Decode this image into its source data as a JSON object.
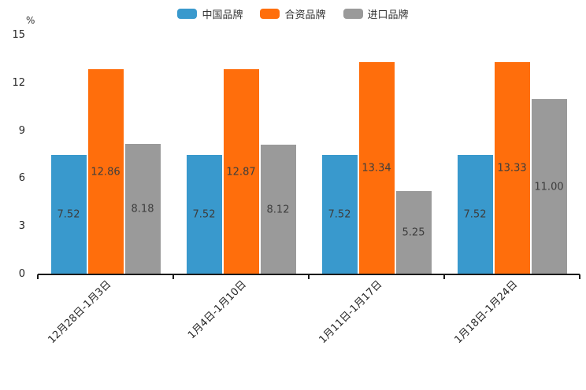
{
  "chart_data": {
    "type": "bar",
    "title": "",
    "ylabel": "%",
    "xlabel": "",
    "categories": [
      "12月28日-1月3日",
      "1月4日-1月10日",
      "1月11日-1月17日",
      "1月18日-1月24日"
    ],
    "series": [
      {
        "name": "中国品牌",
        "color": "#3999cd",
        "values": [
          7.52,
          7.52,
          7.52,
          7.52
        ]
      },
      {
        "name": "合资品牌",
        "color": "#ff6e0c",
        "values": [
          12.86,
          12.87,
          13.34,
          13.33
        ]
      },
      {
        "name": "进口品牌",
        "color": "#9a9a9a",
        "values": [
          8.18,
          8.12,
          5.25,
          11.0
        ]
      }
    ],
    "value_label_decimals": 2,
    "ylim": [
      0,
      15
    ],
    "yticks": [
      0,
      3,
      6,
      9,
      12,
      15
    ],
    "legend_position": "top-center",
    "grid": false,
    "axis_color": "#1a1a1a",
    "label_color": "#3d3d3d"
  }
}
